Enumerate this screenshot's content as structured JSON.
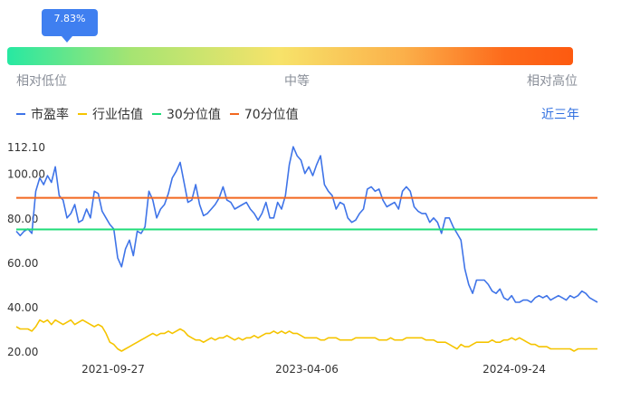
{
  "percentile": {
    "value_label": "7.83%",
    "value": 7.83
  },
  "scale": {
    "low": "相对低位",
    "mid": "中等",
    "high": "相对高位"
  },
  "range_selector": "近三年",
  "colors": {
    "pe": "#3f74e8",
    "industry": "#f5c400",
    "p30": "#1fdc78",
    "p70": "#f2681f"
  },
  "chart_data": {
    "type": "line",
    "x_ticks": [
      "2021-09-27",
      "2023-04-06",
      "2024-09-24"
    ],
    "y_ticks": [
      "112.10",
      "100.00",
      "80.00",
      "60.00",
      "40.00",
      "20.00"
    ],
    "ylim": [
      20,
      112.1
    ],
    "legend": [
      "市盈率",
      "行业估值",
      "30分位值",
      "70分位值"
    ],
    "p30": 74.8,
    "p70": 89.0,
    "series": [
      {
        "name": "市盈率",
        "values": [
          74,
          72,
          74,
          75,
          73,
          92,
          98,
          95,
          99,
          96,
          103,
          90,
          88,
          80,
          82,
          86,
          78,
          79,
          84,
          80,
          92,
          91,
          83,
          80,
          77,
          75,
          62,
          58,
          66,
          70,
          63,
          74,
          73,
          76,
          92,
          88,
          80,
          84,
          86,
          91,
          98,
          101,
          105,
          96,
          87,
          88,
          95,
          86,
          81,
          82,
          84,
          86,
          89,
          94,
          88,
          87,
          84,
          85,
          86,
          87,
          84,
          82,
          79,
          82,
          87,
          80,
          80,
          87,
          84,
          90,
          104,
          112,
          108,
          106,
          100,
          103,
          99,
          104,
          108,
          95,
          92,
          90,
          84,
          87,
          86,
          80,
          78,
          79,
          82,
          84,
          93,
          94,
          92,
          93,
          88,
          85,
          86,
          87,
          84,
          92,
          94,
          92,
          85,
          83,
          82,
          82,
          78,
          80,
          78,
          73,
          80,
          80,
          76,
          73,
          70,
          57,
          50,
          46,
          52,
          52,
          52,
          50,
          47,
          46,
          48,
          44,
          43,
          45,
          42,
          42,
          43,
          43,
          42,
          44,
          45,
          44,
          45,
          43,
          44,
          45,
          44,
          43,
          45,
          44,
          45,
          47,
          46,
          44,
          43,
          42
        ]
      },
      {
        "name": "行业估值",
        "values": [
          31,
          30,
          30,
          30,
          29,
          31,
          34,
          33,
          34,
          32,
          34,
          33,
          32,
          33,
          34,
          32,
          33,
          34,
          33,
          32,
          31,
          32,
          31,
          28,
          24,
          23,
          21,
          20,
          21,
          22,
          23,
          24,
          25,
          26,
          27,
          28,
          27,
          28,
          28,
          29,
          28,
          29,
          30,
          29,
          27,
          26,
          25,
          25,
          24,
          25,
          26,
          25,
          26,
          26,
          27,
          26,
          25,
          26,
          25,
          26,
          26,
          27,
          26,
          27,
          28,
          28,
          29,
          28,
          29,
          28,
          29,
          28,
          28,
          27,
          26,
          26,
          26,
          26,
          25,
          25,
          26,
          26,
          26,
          25,
          25,
          25,
          25,
          26,
          26,
          26,
          26,
          26,
          26,
          25,
          25,
          25,
          26,
          25,
          25,
          25,
          26,
          26,
          26,
          26,
          26,
          25,
          25,
          25,
          24,
          24,
          24,
          23,
          22,
          21,
          23,
          22,
          22,
          23,
          24,
          24,
          24,
          24,
          25,
          24,
          24,
          25,
          25,
          26,
          25,
          26,
          25,
          24,
          23,
          23,
          22,
          22,
          22,
          21,
          21,
          21,
          21,
          21,
          21,
          20,
          21,
          21,
          21,
          21,
          21,
          21
        ]
      }
    ]
  }
}
